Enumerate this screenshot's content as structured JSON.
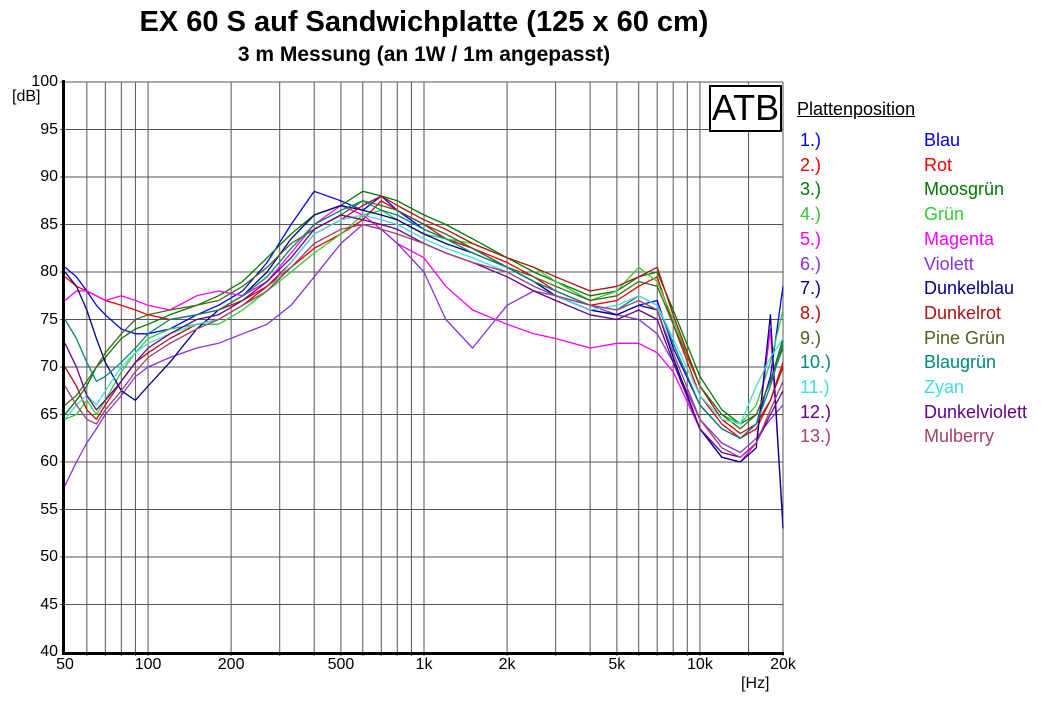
{
  "title": "EX 60 S auf Sandwichplatte (125 x 60 cm)",
  "subtitle": "3 m Messung (an 1W / 1m angepasst)",
  "logo": "ATB",
  "legend": {
    "heading": "Plattenposition",
    "items": [
      {
        "num": "1.)",
        "label": "Blau",
        "color": "#0000f0"
      },
      {
        "num": "2.)",
        "label": "Rot",
        "color": "#f00000"
      },
      {
        "num": "3.)",
        "label": "Moosgrün",
        "color": "#007800"
      },
      {
        "num": "4.)",
        "label": "Grün",
        "color": "#33cc33"
      },
      {
        "num": "5.)",
        "label": "Magenta",
        "color": "#ff00ff"
      },
      {
        "num": "6.)",
        "label": "Violett",
        "color": "#8833dd"
      },
      {
        "num": "7.)",
        "label": "Dunkelblau",
        "color": "#000088"
      },
      {
        "num": "8.)",
        "label": "Dunkelrot",
        "color": "#b01010"
      },
      {
        "num": "9.)",
        "label": "Pine Grün",
        "color": "#48641e"
      },
      {
        "num": "10.)",
        "label": "Blaugrün",
        "color": "#008877"
      },
      {
        "num": "11.)",
        "label": "Zyan",
        "color": "#44dddd"
      },
      {
        "num": "12.)",
        "label": "Dunkelviolett",
        "color": "#660088"
      },
      {
        "num": "13.)",
        "label": "Mulberry",
        "color": "#a0416e"
      }
    ]
  },
  "chart_data": {
    "type": "line",
    "x_scale": "log",
    "xlabel": "[Hz]",
    "ylabel": "[dB]",
    "xlim": [
      50,
      20000
    ],
    "ylim": [
      40,
      100
    ],
    "grid": true,
    "grid_color": "#555555",
    "y_ticks": [
      100,
      95,
      90,
      85,
      80,
      75,
      70,
      65,
      60,
      55,
      50,
      45,
      40
    ],
    "x_ticks": [
      {
        "f": 50,
        "label": "50"
      },
      {
        "f": 100,
        "label": "100"
      },
      {
        "f": 200,
        "label": "200"
      },
      {
        "f": 500,
        "label": "500"
      },
      {
        "f": 1000,
        "label": "1k"
      },
      {
        "f": 2000,
        "label": "2k"
      },
      {
        "f": 5000,
        "label": "5k"
      },
      {
        "f": 10000,
        "label": "10k"
      },
      {
        "f": 20000,
        "label": "20k"
      }
    ],
    "grid_x": [
      60,
      70,
      80,
      90,
      100,
      200,
      300,
      400,
      500,
      600,
      700,
      800,
      900,
      1000,
      2000,
      3000,
      4000,
      5000,
      6000,
      7000,
      8000,
      9000,
      10000,
      15000,
      20000
    ],
    "grid_y": [
      45,
      50,
      55,
      60,
      65,
      70,
      75,
      80,
      85,
      90,
      95,
      100
    ],
    "legend_position": "right",
    "x": [
      50,
      55,
      60,
      65,
      70,
      80,
      90,
      100,
      120,
      150,
      180,
      220,
      270,
      330,
      400,
      500,
      600,
      700,
      800,
      1000,
      1200,
      1500,
      2000,
      2500,
      3000,
      4000,
      5000,
      6000,
      7000,
      8000,
      10000,
      12000,
      14000,
      16000,
      18000,
      20000
    ],
    "series": [
      {
        "name": "Blau",
        "color": "#0000f0",
        "values": [
          80.5,
          79.5,
          78,
          76.5,
          75.5,
          74,
          73.5,
          73.5,
          74,
          75.5,
          76.5,
          78,
          81,
          85,
          88.5,
          87.5,
          86.5,
          88,
          86.5,
          84.5,
          83.5,
          82.5,
          80.5,
          79,
          77.5,
          76,
          75.5,
          76.5,
          77,
          72,
          66,
          63.5,
          62.5,
          64,
          69,
          78.5
        ]
      },
      {
        "name": "Rot",
        "color": "#f00000",
        "values": [
          79.5,
          78.5,
          78,
          77.5,
          77,
          76.5,
          76,
          75.5,
          75,
          75.5,
          76,
          77,
          78.5,
          80.5,
          82.5,
          84,
          85.5,
          87.5,
          86.5,
          85,
          83.5,
          82.5,
          81,
          79.5,
          78,
          76.5,
          77,
          78.5,
          79.5,
          74.5,
          67,
          64,
          62.5,
          63.5,
          66.5,
          70.5
        ]
      },
      {
        "name": "Moosgrün",
        "color": "#007800",
        "values": [
          65,
          66.5,
          68,
          70,
          71,
          73,
          74,
          74.5,
          75.5,
          76.5,
          77.5,
          79,
          81.5,
          84,
          86,
          87,
          88.5,
          88,
          87.5,
          86,
          85,
          83.5,
          81.5,
          80,
          79,
          77.5,
          78,
          79.5,
          80,
          76,
          69,
          65.5,
          64,
          65,
          68.5,
          73
        ]
      },
      {
        "name": "Grün",
        "color": "#33cc33",
        "values": [
          64.5,
          65,
          66.5,
          65,
          66.5,
          69.5,
          71.5,
          73,
          74,
          74.5,
          74.5,
          76,
          78,
          80,
          82,
          84,
          86,
          86.5,
          85.5,
          84,
          83.5,
          83,
          81.5,
          80.5,
          79,
          77,
          78,
          80.5,
          79,
          75,
          68,
          65,
          64,
          66,
          70.5,
          76
        ]
      },
      {
        "name": "Magenta",
        "color": "#ff00ff",
        "values": [
          77,
          78,
          78,
          77.5,
          77,
          77.5,
          77,
          76.5,
          76,
          77.5,
          78,
          77.5,
          79,
          82,
          85,
          87,
          86,
          84.5,
          83,
          81.5,
          78.5,
          76,
          74.5,
          73.5,
          73,
          72,
          72.5,
          72.5,
          71.5,
          69.5,
          63.5,
          60.5,
          60,
          62,
          74,
          53.5
        ]
      },
      {
        "name": "Violett",
        "color": "#8833dd",
        "values": [
          57.5,
          60,
          62,
          63.5,
          65,
          67,
          69,
          70,
          71,
          72,
          72.5,
          73.5,
          74.5,
          76.5,
          79.5,
          83,
          85,
          84.5,
          83,
          80,
          75,
          72,
          76.5,
          78,
          77.5,
          76.5,
          75.5,
          75,
          73.5,
          70.5,
          64.5,
          62,
          61,
          62.5,
          64.5,
          66
        ]
      },
      {
        "name": "Dunkelblau",
        "color": "#000088",
        "values": [
          80,
          78.5,
          76,
          73,
          70.5,
          67.5,
          66.5,
          68,
          70.5,
          74,
          76,
          77.5,
          80,
          83.5,
          86,
          87,
          86.5,
          86,
          85.5,
          84,
          83,
          82,
          80.5,
          79,
          77.5,
          76,
          75.5,
          76.5,
          76,
          71,
          63.5,
          60.5,
          60,
          61.5,
          75.5,
          53
        ]
      },
      {
        "name": "Dunkelrot",
        "color": "#b01010",
        "values": [
          70,
          68,
          65.5,
          64.5,
          66,
          68.5,
          70.5,
          71.5,
          73,
          74.5,
          75,
          76.5,
          78.5,
          81,
          84,
          85.5,
          87,
          88,
          87,
          85.5,
          84.5,
          83,
          81.5,
          80.5,
          79.5,
          78,
          78.5,
          79.5,
          80.5,
          75.5,
          68,
          64.5,
          63,
          64,
          66.5,
          70
        ]
      },
      {
        "name": "Pine Grün",
        "color": "#48641e",
        "values": [
          66,
          67,
          68.5,
          70,
          71.5,
          73.5,
          75,
          75.5,
          76,
          76.5,
          77,
          78.5,
          80.5,
          83,
          84.5,
          86,
          87.5,
          87,
          86.5,
          85,
          84,
          82.5,
          80.5,
          79.5,
          78.5,
          77,
          77.5,
          79,
          78.5,
          74.5,
          68,
          65,
          63.5,
          65,
          68.5,
          72
        ]
      },
      {
        "name": "Blaugrün",
        "color": "#008877",
        "values": [
          75,
          73,
          70.5,
          68.5,
          69,
          70.5,
          72,
          73.5,
          75,
          75.5,
          76,
          77.5,
          79.5,
          82.5,
          85,
          86.5,
          87.5,
          86.5,
          86,
          84.5,
          83.5,
          82,
          80.5,
          79,
          78,
          76.5,
          76,
          77.5,
          76.5,
          72.5,
          66,
          63.5,
          62.5,
          64,
          68,
          72.5
        ]
      },
      {
        "name": "Zyan",
        "color": "#44dddd",
        "values": [
          64.5,
          66,
          67,
          66,
          67.5,
          70,
          71.5,
          72.5,
          73.5,
          74.5,
          75,
          76.5,
          78,
          81,
          84,
          85.5,
          86,
          85.5,
          85,
          83.5,
          82.5,
          81.5,
          80,
          78.5,
          77.5,
          76,
          76.5,
          77.5,
          76.5,
          73,
          67,
          64.5,
          64,
          68,
          71,
          73
        ]
      },
      {
        "name": "Dunkelviolett",
        "color": "#660088",
        "values": [
          72.5,
          70,
          67,
          65.5,
          66.5,
          68.5,
          70.5,
          72,
          73.5,
          75,
          75.5,
          77,
          79,
          81.5,
          84.5,
          86,
          85.5,
          85,
          84.5,
          83,
          82,
          81,
          79.5,
          78,
          77,
          75.5,
          75,
          76,
          75,
          70.5,
          63.5,
          61,
          60.5,
          62,
          65,
          67.5
        ]
      },
      {
        "name": "Mulberry",
        "color": "#a0416e",
        "values": [
          68,
          66,
          64.5,
          64,
          65.5,
          67.5,
          69.5,
          71,
          72.5,
          74,
          75,
          76.5,
          78,
          80.5,
          83,
          84.5,
          85,
          84.5,
          84,
          83,
          82,
          81,
          80,
          78.5,
          77.5,
          76.5,
          76,
          77,
          76,
          71.5,
          64.5,
          61.5,
          60.5,
          62,
          65.5,
          68.5
        ]
      }
    ]
  }
}
